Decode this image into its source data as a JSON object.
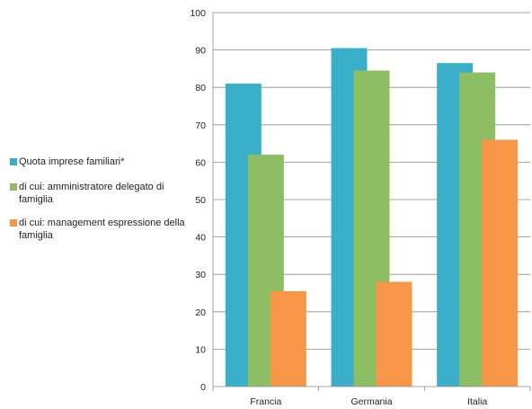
{
  "chart_data": {
    "type": "bar",
    "categories": [
      "Francia",
      "Germania",
      "Italia"
    ],
    "series": [
      {
        "name": "Quota imprese familiari*",
        "color": "#3AAFC9",
        "values": [
          81,
          90.5,
          86.5
        ]
      },
      {
        "name": "di cui: amministratore delegato di famiglia",
        "color": "#8DBE63",
        "values": [
          62,
          84.5,
          84
        ]
      },
      {
        "name": "di cui: management espressione della famiglia",
        "color": "#F79646",
        "values": [
          25.5,
          28,
          66
        ]
      }
    ],
    "ylim": [
      0,
      100
    ],
    "yticks": [
      0,
      10,
      20,
      30,
      40,
      50,
      60,
      70,
      80,
      90,
      100
    ],
    "grid": true,
    "legend_position": "left"
  }
}
